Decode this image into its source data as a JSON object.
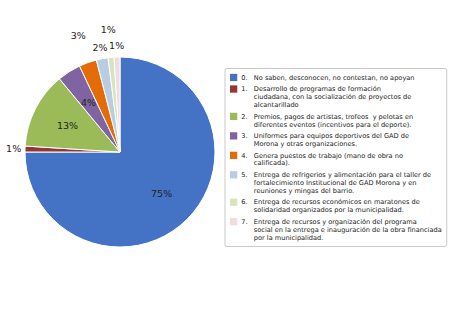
{
  "chart_data": {
    "type": "pie",
    "categories": [
      "0.   No saben, desconocen, no contestan, no apoyan",
      "1.   Desarrollo de programas de formación\n      ciudadana, con la socialización de proyectos de\n      alcantarillado",
      "2.   Premios, pagos de artistas, trofeos  y pelotas en\n      diferentes eventos (incentivos para el deporte).",
      "3.   Uniformes para equipos deportivos del GAD de\n      Morona y otras organizaciones.",
      "4.   Genera puestos de trabajo (mano de obra no\n      calificada).",
      "5.   Entrega de refrigerios y alimentación para el taller de\n      fortalecimiento Institucional de GAD Morona y en\n      reuniones y mingas del barrio.",
      "6.   Entrega de recursos económicos en maratones de\n      solidaridad organizados por la municipalidad.",
      "7.   Entrega de recursos y organización del programa\n      social en la entrega e inauguración de la obra financiada\n      por la municipalidad."
    ],
    "values": [
      75,
      1,
      13,
      4,
      3,
      2,
      1,
      1
    ],
    "value_labels": [
      "75%",
      "1%",
      "13%",
      "4%",
      "3%",
      "2%",
      "1%",
      "1%"
    ],
    "colors": [
      "#4472C4",
      "#943634",
      "#9BBB59",
      "#8064A2",
      "#E36C09",
      "#B8CCE4",
      "#D8E4BC",
      "#F2DCDB"
    ],
    "data_labels": true,
    "legend": "right"
  }
}
